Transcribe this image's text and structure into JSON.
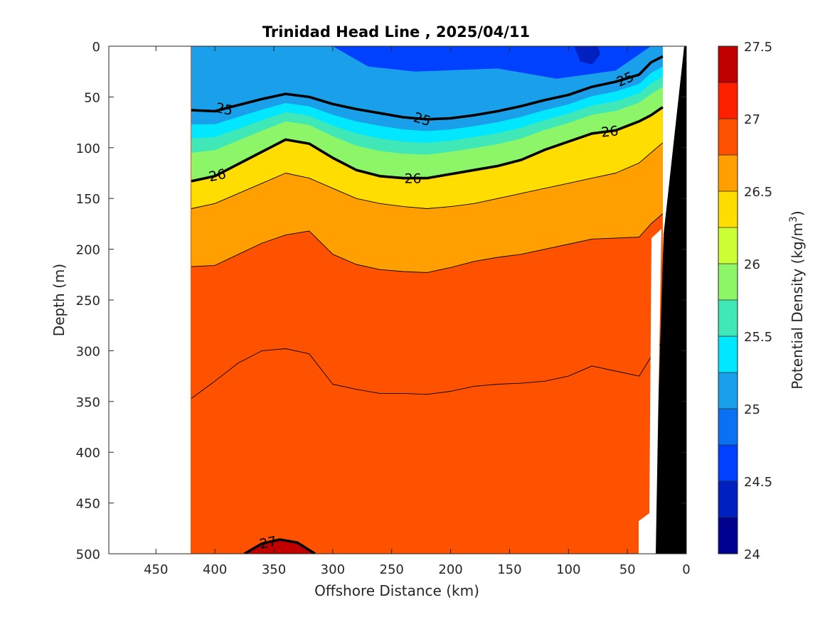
{
  "chart_data": {
    "type": "contour",
    "title": "Trinidad Head Line , 2025/04/11",
    "xlabel": "Offshore Distance (km)",
    "ylabel": "Depth (m)",
    "xlim": [
      490,
      0
    ],
    "ylim": [
      0,
      500
    ],
    "x_ticks": [
      "450",
      "400",
      "350",
      "300",
      "250",
      "200",
      "150",
      "100",
      "50",
      "0"
    ],
    "y_ticks": [
      "0",
      "50",
      "100",
      "150",
      "200",
      "250",
      "300",
      "350",
      "400",
      "450",
      "500"
    ],
    "colorbar": {
      "label": "Potential Density (kg/m3)",
      "levels": [
        24,
        24.25,
        24.5,
        24.75,
        25,
        25.25,
        25.5,
        25.75,
        26,
        26.25,
        26.5,
        26.75,
        27,
        27.25,
        27.5
      ],
      "tick_labels": [
        "24",
        "24.5",
        "25",
        "25.5",
        "26",
        "26.5",
        "27",
        "27.5"
      ],
      "colors": [
        "#00008f",
        "#0020c0",
        "#0040ff",
        "#0a72f2",
        "#1aa0ea",
        "#00e7ff",
        "#3fe8b6",
        "#8cf668",
        "#ccff33",
        "#ffdd00",
        "#ffa000",
        "#ff5200",
        "#ff2000",
        "#c00000"
      ]
    },
    "isopycnals": [
      {
        "level": 24.75,
        "x": [
          420,
          390,
          370,
          340,
          320,
          300,
          250,
          200,
          150,
          100,
          80,
          60,
          40,
          25,
          20
        ],
        "depth": [
          0,
          0,
          0,
          0,
          0,
          0,
          0,
          0,
          0,
          0,
          0,
          0,
          0,
          0,
          0
        ]
      },
      {
        "level": 25,
        "x": [
          420,
          400,
          380,
          360,
          340,
          320,
          300,
          280,
          260,
          240,
          220,
          200,
          180,
          160,
          140,
          120,
          100,
          80,
          60,
          40,
          30,
          20
        ],
        "depth": [
          63,
          64,
          58,
          52,
          47,
          50,
          57,
          62,
          66,
          70,
          72,
          71,
          68,
          64,
          59,
          53,
          48,
          40,
          35,
          28,
          16,
          10
        ],
        "labels": [
          "25",
          "25",
          "25"
        ],
        "bold": true
      },
      {
        "level": 26,
        "x": [
          420,
          400,
          380,
          360,
          340,
          320,
          300,
          280,
          260,
          240,
          220,
          200,
          180,
          160,
          140,
          120,
          100,
          80,
          60,
          40,
          30,
          20
        ],
        "depth": [
          133,
          128,
          116,
          104,
          92,
          96,
          110,
          122,
          128,
          130,
          130,
          126,
          122,
          118,
          112,
          102,
          94,
          86,
          83,
          74,
          68,
          60
        ],
        "labels": [
          "26",
          "26",
          "26"
        ],
        "bold": true
      },
      {
        "level": 26.5,
        "x": [
          420,
          400,
          380,
          360,
          340,
          320,
          300,
          280,
          260,
          240,
          220,
          200,
          180,
          160,
          140,
          120,
          100,
          80,
          60,
          40,
          30,
          20
        ],
        "depth": [
          160,
          155,
          145,
          135,
          125,
          130,
          140,
          150,
          155,
          158,
          160,
          158,
          155,
          150,
          145,
          140,
          135,
          130,
          125,
          115,
          105,
          95
        ],
        "bold": false
      },
      {
        "level": 26.75,
        "x": [
          420,
          400,
          380,
          360,
          340,
          320,
          300,
          280,
          260,
          240,
          220,
          200,
          180,
          160,
          140,
          120,
          100,
          80,
          60,
          40,
          30,
          20
        ],
        "depth": [
          217,
          216,
          205,
          194,
          186,
          182,
          205,
          215,
          220,
          222,
          223,
          218,
          212,
          208,
          205,
          200,
          195,
          190,
          189,
          188,
          175,
          165
        ],
        "bold": false
      },
      {
        "level": 27,
        "x": [
          420,
          400,
          380,
          360,
          340,
          320,
          300,
          280,
          260,
          240,
          220,
          200,
          180,
          160,
          140,
          120,
          100,
          80,
          60,
          40,
          30,
          20
        ],
        "depth": [
          347,
          330,
          312,
          300,
          298,
          303,
          333,
          338,
          342,
          342,
          343,
          340,
          335,
          333,
          332,
          330,
          325,
          315,
          320,
          325,
          306,
          290
        ],
        "bold": false
      },
      {
        "level": 27.25,
        "x": [
          375,
          360,
          345,
          330,
          315
        ],
        "depth": [
          500,
          490,
          486,
          489,
          500
        ],
        "labels": [
          "27"
        ],
        "bold": true
      }
    ]
  }
}
